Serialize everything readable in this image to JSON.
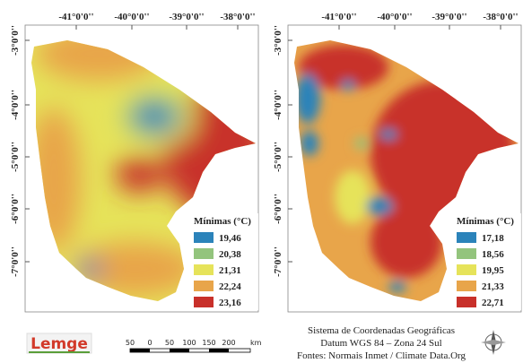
{
  "panels": [
    {
      "longitudes": [
        "-41°0'0''",
        "-40°0'0''",
        "-39°0'0''",
        "-38°0'0''"
      ],
      "latitudes": [
        "-3°0'0''",
        "-4°0'0''",
        "-5°0'0''",
        "-6°0'0''",
        "-7°0'0''"
      ],
      "legend_title": "Mínimas (°C)",
      "legend": [
        {
          "label": "19,46",
          "color": "#2b83ba"
        },
        {
          "label": "20,38",
          "color": "#93c47d"
        },
        {
          "label": "21,31",
          "color": "#e6e35a"
        },
        {
          "label": "22,24",
          "color": "#e8a54a"
        },
        {
          "label": "23,16",
          "color": "#c8302a"
        }
      ]
    },
    {
      "longitudes": [
        "-41°0'0''",
        "-40°0'0''",
        "-39°0'0''",
        "-38°0'0''"
      ],
      "latitudes": [
        "-3°0'0''",
        "-4°0'0''",
        "-5°0'0''",
        "-6°0'0''",
        "-7°0'0''"
      ],
      "legend_title": "Mínimas (°C)",
      "legend": [
        {
          "label": "17,18",
          "color": "#2b83ba"
        },
        {
          "label": "18,56",
          "color": "#93c47d"
        },
        {
          "label": "19,95",
          "color": "#e6e35a"
        },
        {
          "label": "21,33",
          "color": "#e8a54a"
        },
        {
          "label": "22,71",
          "color": "#c8302a"
        }
      ]
    }
  ],
  "logo": "Lemge",
  "scale_labels": [
    "50",
    "0",
    "50",
    "100",
    "150",
    "200",
    "km"
  ],
  "footer": [
    "Sistema de Coordenadas Geográficas",
    "Datum WGS 84 – Zona 24 Sul",
    "Fontes: Normais Inmet / Climate Data.Org"
  ]
}
